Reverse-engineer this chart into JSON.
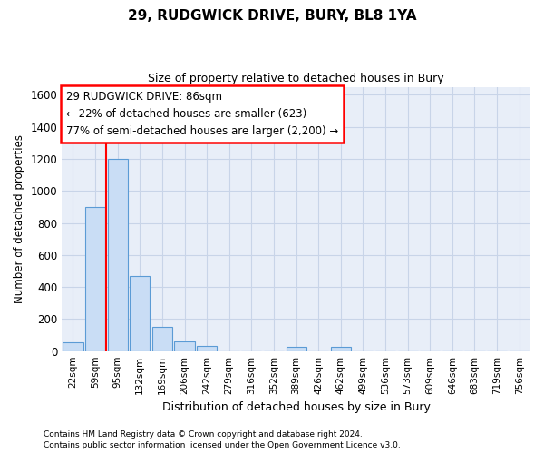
{
  "title": "29, RUDGWICK DRIVE, BURY, BL8 1YA",
  "subtitle": "Size of property relative to detached houses in Bury",
  "xlabel": "Distribution of detached houses by size in Bury",
  "ylabel": "Number of detached properties",
  "categories": [
    "22sqm",
    "59sqm",
    "95sqm",
    "132sqm",
    "169sqm",
    "206sqm",
    "242sqm",
    "279sqm",
    "316sqm",
    "352sqm",
    "389sqm",
    "426sqm",
    "462sqm",
    "499sqm",
    "536sqm",
    "573sqm",
    "609sqm",
    "646sqm",
    "683sqm",
    "719sqm",
    "756sqm"
  ],
  "values": [
    55,
    900,
    1200,
    470,
    150,
    62,
    30,
    0,
    0,
    0,
    25,
    0,
    25,
    0,
    0,
    0,
    0,
    0,
    0,
    0,
    0
  ],
  "bar_color": "#c9ddf5",
  "bar_edge_color": "#5b9bd5",
  "grid_color": "#c8d4e8",
  "background_color": "#e8eef8",
  "red_line_x": 1.5,
  "annotation_line1": "29 RUDGWICK DRIVE: 86sqm",
  "annotation_line2": "← 22% of detached houses are smaller (623)",
  "annotation_line3": "77% of semi-detached houses are larger (2,200) →",
  "ylim": [
    0,
    1650
  ],
  "yticks": [
    0,
    200,
    400,
    600,
    800,
    1000,
    1200,
    1400,
    1600
  ],
  "footer_line1": "Contains HM Land Registry data © Crown copyright and database right 2024.",
  "footer_line2": "Contains public sector information licensed under the Open Government Licence v3.0."
}
